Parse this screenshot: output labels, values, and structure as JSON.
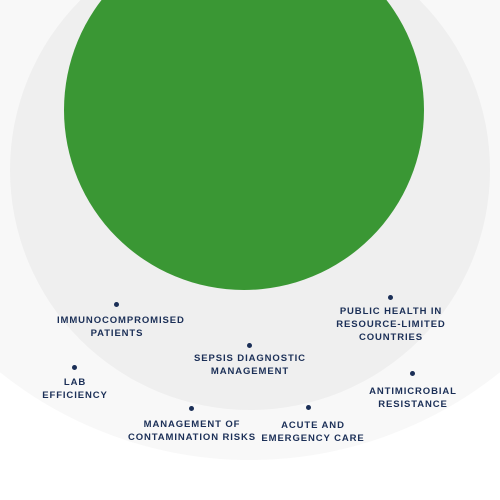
{
  "colors": {
    "background": "#ffffff",
    "outer_ring": "#f8f8f8",
    "inner_ring": "#efefef",
    "core": "#3a9734",
    "text": "#1b2f57",
    "dot": "#1b2f57"
  },
  "labels": [
    {
      "id": "immunocompromised",
      "lines": [
        "IMMUNOCOMPROMISED",
        "PATIENTS"
      ]
    },
    {
      "id": "public-health",
      "lines": [
        "PUBLIC HEALTH IN",
        "RESOURCE-LIMITED",
        "COUNTRIES"
      ]
    },
    {
      "id": "sepsis",
      "lines": [
        "SEPSIS DIAGNOSTIC",
        "MANAGEMENT"
      ]
    },
    {
      "id": "lab-efficiency",
      "lines": [
        "LAB",
        "EFFICIENCY"
      ]
    },
    {
      "id": "antimicrobial",
      "lines": [
        "ANTIMICROBIAL",
        "RESISTANCE"
      ]
    },
    {
      "id": "contamination",
      "lines": [
        "MANAGEMENT OF",
        "CONTAMINATION RISKS"
      ]
    },
    {
      "id": "acute-care",
      "lines": [
        "ACUTE AND",
        "EMERGENCY CARE"
      ]
    }
  ]
}
